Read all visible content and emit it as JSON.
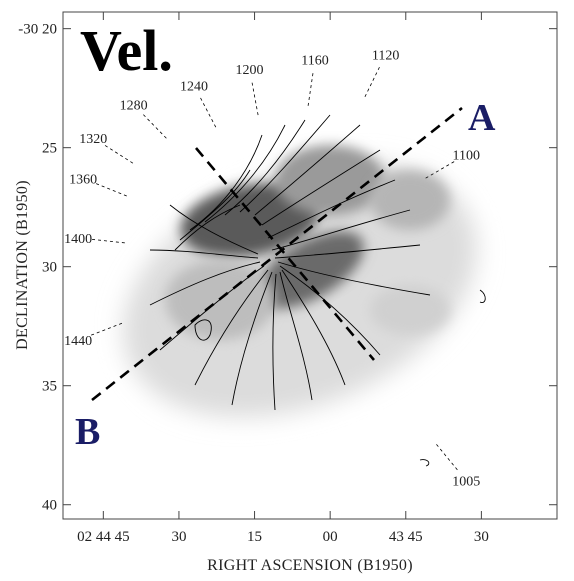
{
  "figure": {
    "panel_title": "Vel.",
    "xlabel": "RIGHT ASCENSION (B1950)",
    "ylabel": "DECLINATION (B1950)",
    "x_ticks": [
      {
        "label": "02 44 45",
        "ra_sec": 105
      },
      {
        "label": "30",
        "ra_sec": 90
      },
      {
        "label": "15",
        "ra_sec": 75
      },
      {
        "label": "00",
        "ra_sec": 60
      },
      {
        "label": "43 45",
        "ra_sec": 45
      },
      {
        "label": "30",
        "ra_sec": 30
      }
    ],
    "y_ticks": [
      {
        "label": "-30 20",
        "dec_arcmin": 20
      },
      {
        "label": "25",
        "dec_arcmin": 25
      },
      {
        "label": "30",
        "dec_arcmin": 30
      },
      {
        "label": "35",
        "dec_arcmin": 35
      },
      {
        "label": "40",
        "dec_arcmin": 40
      }
    ],
    "x_range_ra_sec": [
      113,
      15
    ],
    "y_range_dec_arcmin": [
      19.3,
      40.6
    ],
    "contour_labels": [
      {
        "text": "1100",
        "ra_sec": 33,
        "dec_arcmin": 25.5
      },
      {
        "text": "1120",
        "ra_sec": 49,
        "dec_arcmin": 21.3
      },
      {
        "text": "1160",
        "ra_sec": 63,
        "dec_arcmin": 21.5
      },
      {
        "text": "1200",
        "ra_sec": 76,
        "dec_arcmin": 21.9
      },
      {
        "text": "1240",
        "ra_sec": 87,
        "dec_arcmin": 22.6
      },
      {
        "text": "1280",
        "ra_sec": 99,
        "dec_arcmin": 23.4
      },
      {
        "text": "1320",
        "ra_sec": 107,
        "dec_arcmin": 24.8
      },
      {
        "text": "1360",
        "ra_sec": 109,
        "dec_arcmin": 26.5
      },
      {
        "text": "1400",
        "ra_sec": 110,
        "dec_arcmin": 29.0
      },
      {
        "text": "1440",
        "ra_sec": 110,
        "dec_arcmin": 33.3
      },
      {
        "text": "1005",
        "ra_sec": 33,
        "dec_arcmin": 39.2
      }
    ],
    "cut_labels": {
      "a": "A",
      "b": "B"
    },
    "colors": {
      "ink": "#000000",
      "cut_label": "#1a1d66",
      "frame": "#444444"
    }
  }
}
